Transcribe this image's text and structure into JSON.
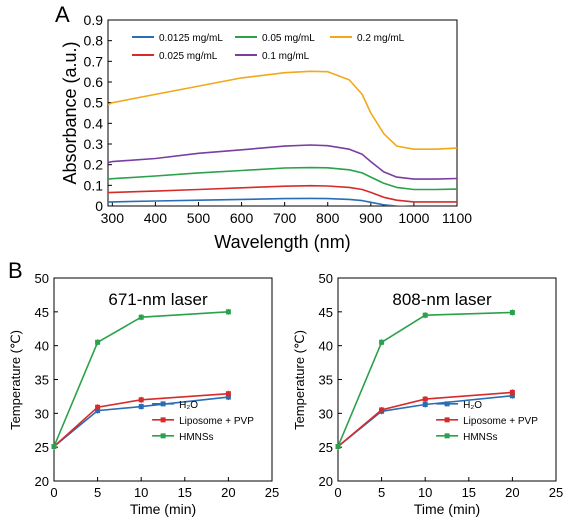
{
  "figure": {
    "label_a": "A",
    "label_b": "B"
  },
  "chart_data": [
    {
      "type": "line",
      "panel": "A",
      "xlabel": "Wavelength (nm)",
      "ylabel": "Absorbance (a.u.)",
      "xlim": [
        290,
        1100
      ],
      "ylim": [
        0,
        0.9
      ],
      "xticks": [
        300,
        400,
        500,
        600,
        700,
        800,
        900,
        1000,
        1100
      ],
      "yticks": [
        0,
        0.1,
        0.2,
        0.3,
        0.4,
        0.5,
        0.6,
        0.7,
        0.8,
        0.9
      ],
      "grid": false,
      "legend_position": "top",
      "x": [
        290,
        300,
        400,
        500,
        600,
        700,
        760,
        800,
        850,
        880,
        900,
        930,
        960,
        1000,
        1050,
        1100
      ],
      "series": [
        {
          "name": "0.0125 mg/mL",
          "color": "#2a6db5",
          "values": [
            0.02,
            0.02,
            0.024,
            0.028,
            0.032,
            0.036,
            0.037,
            0.036,
            0.032,
            0.026,
            0.018,
            0.006,
            0.0,
            -0.005,
            -0.006,
            -0.007
          ]
        },
        {
          "name": "0.025 mg/mL",
          "color": "#d62b2b",
          "values": [
            0.065,
            0.066,
            0.072,
            0.08,
            0.088,
            0.096,
            0.098,
            0.097,
            0.09,
            0.08,
            0.066,
            0.042,
            0.028,
            0.02,
            0.02,
            0.02
          ]
        },
        {
          "name": "0.05 mg/mL",
          "color": "#2aa14a",
          "values": [
            0.13,
            0.132,
            0.145,
            0.16,
            0.172,
            0.184,
            0.186,
            0.185,
            0.175,
            0.16,
            0.14,
            0.11,
            0.09,
            0.08,
            0.08,
            0.082
          ]
        },
        {
          "name": "0.1 mg/mL",
          "color": "#7a3da2",
          "values": [
            0.21,
            0.215,
            0.23,
            0.255,
            0.272,
            0.29,
            0.295,
            0.292,
            0.275,
            0.25,
            0.215,
            0.165,
            0.14,
            0.13,
            0.13,
            0.133
          ]
        },
        {
          "name": "0.2 mg/mL",
          "color": "#f2a818",
          "values": [
            0.49,
            0.5,
            0.54,
            0.58,
            0.62,
            0.645,
            0.652,
            0.65,
            0.61,
            0.54,
            0.45,
            0.35,
            0.29,
            0.275,
            0.275,
            0.28
          ]
        }
      ]
    },
    {
      "type": "line",
      "panel": "B-left",
      "title": "671-nm laser",
      "xlabel": "Time (min)",
      "ylabel": "Temperature (℃)",
      "xlim": [
        0,
        25
      ],
      "ylim": [
        20,
        50
      ],
      "xticks": [
        0,
        5,
        10,
        15,
        20,
        25
      ],
      "yticks": [
        20,
        25,
        30,
        35,
        40,
        45,
        50
      ],
      "grid": false,
      "legend_position": "bottom-right",
      "x": [
        0,
        5,
        10,
        20
      ],
      "series": [
        {
          "name": "H₂O",
          "color": "#2a6db5",
          "values": [
            25.1,
            30.4,
            31.0,
            32.4
          ]
        },
        {
          "name": "Liposome + PVP",
          "color": "#d62b2b",
          "values": [
            25.1,
            30.9,
            32.0,
            32.9
          ]
        },
        {
          "name": "HMNSs",
          "color": "#2aa14a",
          "values": [
            25.1,
            40.5,
            44.2,
            45.0
          ]
        }
      ]
    },
    {
      "type": "line",
      "panel": "B-right",
      "title": "808-nm laser",
      "xlabel": "Time (min)",
      "ylabel": "Temperature (℃)",
      "xlim": [
        0,
        25
      ],
      "ylim": [
        20,
        50
      ],
      "xticks": [
        0,
        5,
        10,
        15,
        20,
        25
      ],
      "yticks": [
        20,
        25,
        30,
        35,
        40,
        45,
        50
      ],
      "grid": false,
      "legend_position": "bottom-right",
      "x": [
        0,
        5,
        10,
        20
      ],
      "series": [
        {
          "name": "H₂O",
          "color": "#2a6db5",
          "values": [
            25.1,
            30.3,
            31.3,
            32.6
          ]
        },
        {
          "name": "Liposome + PVP",
          "color": "#d62b2b",
          "values": [
            25.1,
            30.5,
            32.1,
            33.1
          ]
        },
        {
          "name": "HMNSs",
          "color": "#2aa14a",
          "values": [
            25.1,
            40.5,
            44.5,
            44.9
          ]
        }
      ]
    }
  ]
}
